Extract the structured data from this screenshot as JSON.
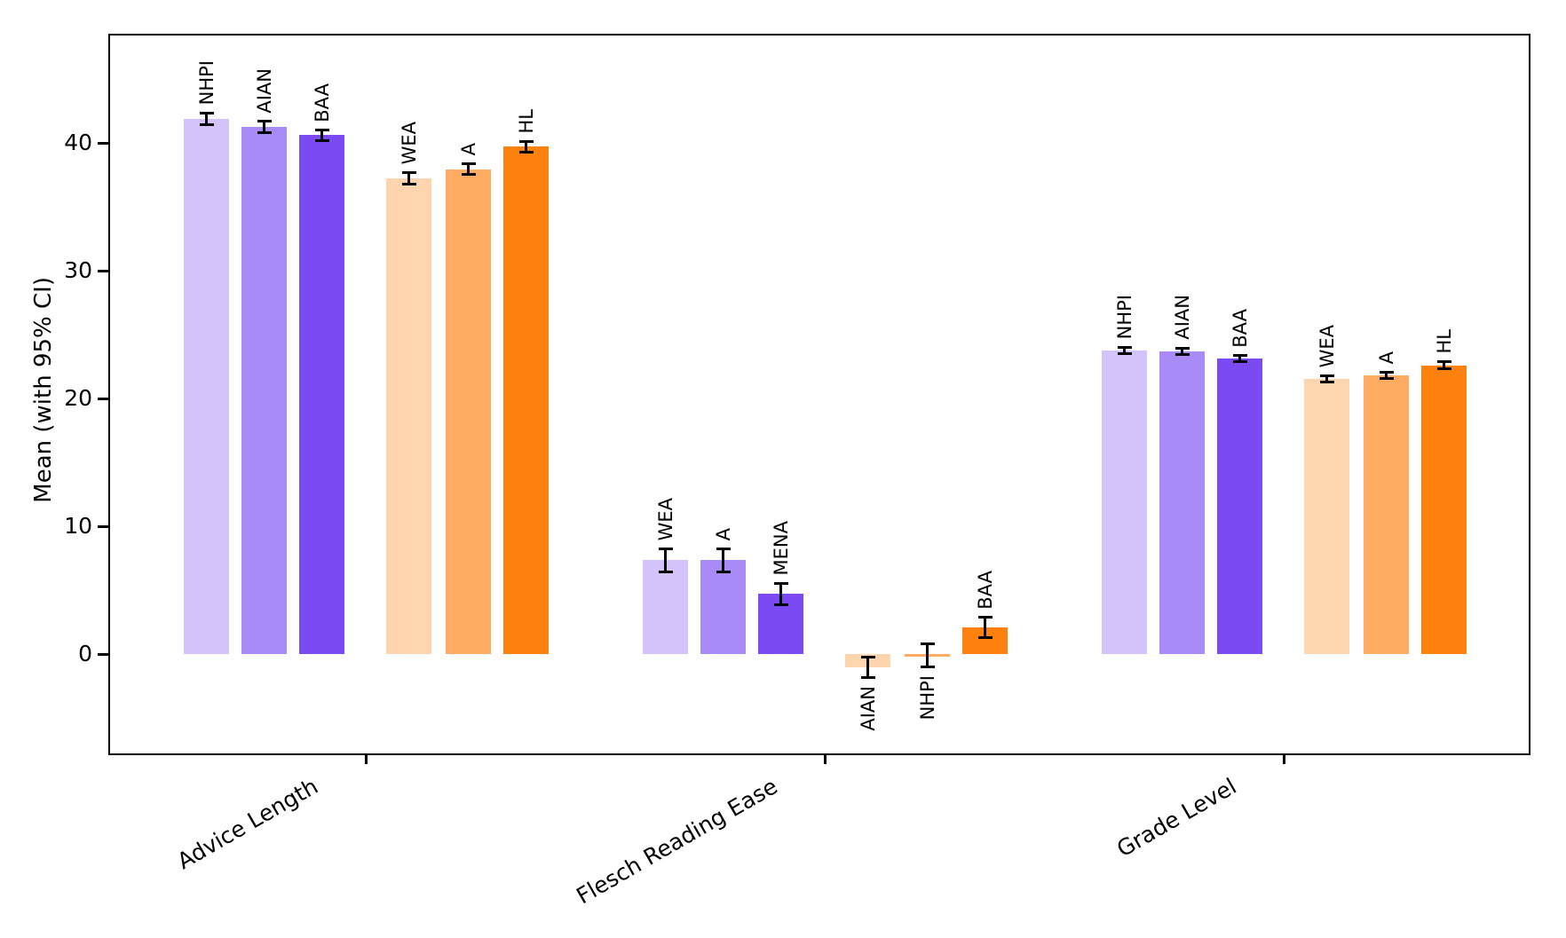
{
  "figure": {
    "background": "#ffffff"
  },
  "colors": {
    "bar_shades": [
      "#d4c2fa",
      "#a88bf6",
      "#7b4af3",
      "#ffd5b0",
      "#ffab61",
      "#ff810d"
    ],
    "error_bar": "#000000",
    "axis": "#000000"
  },
  "chart_data": {
    "type": "bar",
    "title": "",
    "xlabel": "",
    "ylabel": "Mean (with 95% CI)",
    "ylim": [
      -7.9,
      48.5
    ],
    "yticks": [
      0,
      10,
      20,
      30,
      40
    ],
    "grid": false,
    "legend": false,
    "error_bars": "95% CI",
    "categories": [
      "Advice Length",
      "Flesch Reading Ease",
      "Grade Level"
    ],
    "x_tick_rotation_deg": 30,
    "bar_label_rotation_deg": 90,
    "groups": [
      {
        "category": "Advice Length",
        "bars": [
          {
            "label": "NHPI",
            "value": 41.9,
            "ci": 0.45
          },
          {
            "label": "AIAN",
            "value": 41.25,
            "ci": 0.45
          },
          {
            "label": "BAA",
            "value": 40.6,
            "ci": 0.4
          },
          {
            "label": "WEA",
            "value": 37.2,
            "ci": 0.45
          },
          {
            "label": "A",
            "value": 37.95,
            "ci": 0.4
          },
          {
            "label": "HL",
            "value": 39.7,
            "ci": 0.4
          }
        ]
      },
      {
        "category": "Flesch Reading Ease",
        "bars": [
          {
            "label": "WEA",
            "value": 7.35,
            "ci": 0.9
          },
          {
            "label": "A",
            "value": 7.35,
            "ci": 0.9
          },
          {
            "label": "MENA",
            "value": 4.7,
            "ci": 0.85
          },
          {
            "label": "AIAN",
            "value": -1.05,
            "ci": 0.8,
            "label_below": true
          },
          {
            "label": "NHPI",
            "value": -0.12,
            "ci": 0.9,
            "label_below": true
          },
          {
            "label": "BAA",
            "value": 2.08,
            "ci": 0.8
          }
        ]
      },
      {
        "category": "Grade Level",
        "bars": [
          {
            "label": "NHPI",
            "value": 23.75,
            "ci": 0.25
          },
          {
            "label": "AIAN",
            "value": 23.7,
            "ci": 0.25
          },
          {
            "label": "BAA",
            "value": 23.1,
            "ci": 0.25
          },
          {
            "label": "WEA",
            "value": 21.55,
            "ci": 0.25
          },
          {
            "label": "A",
            "value": 21.8,
            "ci": 0.25
          },
          {
            "label": "HL",
            "value": 22.6,
            "ci": 0.25
          }
        ]
      }
    ]
  }
}
